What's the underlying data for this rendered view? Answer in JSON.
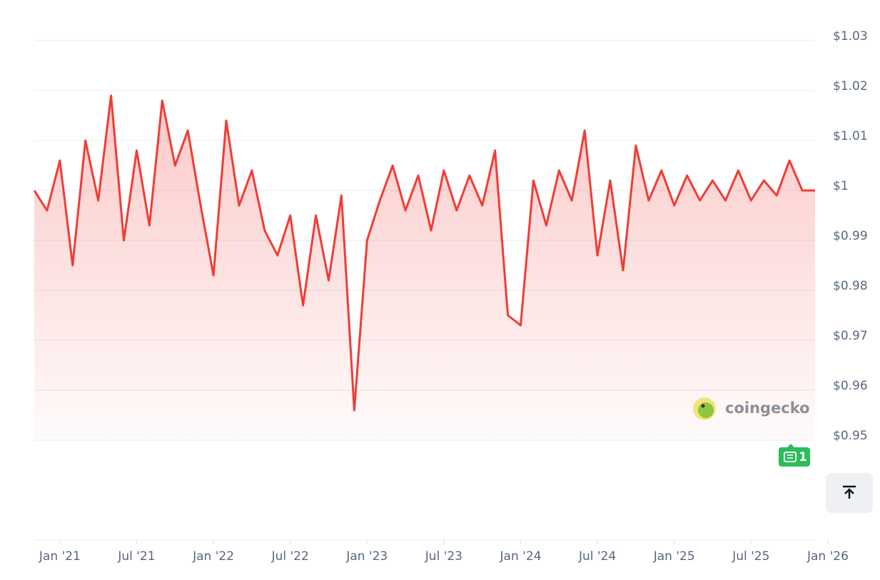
{
  "chart_data": {
    "type": "line",
    "x": [
      "2020-11",
      "2020-12",
      "2021-01",
      "2021-02",
      "2021-03",
      "2021-04",
      "2021-05",
      "2021-06",
      "2021-07",
      "2021-08",
      "2021-09",
      "2021-10",
      "2021-11",
      "2021-12",
      "2022-01",
      "2022-02",
      "2022-03",
      "2022-04",
      "2022-05",
      "2022-06",
      "2022-07",
      "2022-08",
      "2022-09",
      "2022-10",
      "2022-11",
      "2022-12",
      "2023-01",
      "2023-02",
      "2023-03",
      "2023-04",
      "2023-05",
      "2023-06",
      "2023-07",
      "2023-08",
      "2023-09",
      "2023-10",
      "2023-11",
      "2023-12",
      "2024-01",
      "2024-02",
      "2024-03",
      "2024-04",
      "2024-05",
      "2024-06",
      "2024-07",
      "2024-08",
      "2024-09",
      "2024-10",
      "2024-11",
      "2024-12",
      "2025-01",
      "2025-02",
      "2025-03",
      "2025-04",
      "2025-05",
      "2025-06",
      "2025-07",
      "2025-08",
      "2025-09",
      "2025-10",
      "2025-11",
      "2025-12"
    ],
    "values": [
      1.0,
      0.996,
      1.006,
      0.985,
      1.01,
      0.998,
      1.019,
      0.99,
      1.008,
      0.993,
      1.018,
      1.005,
      1.012,
      0.997,
      0.983,
      1.014,
      0.997,
      1.004,
      0.992,
      0.987,
      0.995,
      0.977,
      0.995,
      0.982,
      0.999,
      0.956,
      0.99,
      0.998,
      1.005,
      0.996,
      1.003,
      0.992,
      1.004,
      0.996,
      1.003,
      0.997,
      1.008,
      0.975,
      0.973,
      1.002,
      0.993,
      1.004,
      0.998,
      1.012,
      0.987,
      1.002,
      0.984,
      1.009,
      0.998,
      1.004,
      0.997,
      1.003,
      0.998,
      1.002,
      0.998,
      1.004,
      0.998,
      1.002,
      0.999,
      1.006,
      1.0,
      1.0
    ],
    "color": "#f03c36",
    "xlim": [
      "2020-11",
      "2025-12"
    ],
    "xticks": [
      {
        "value": "2021-01",
        "label": "Jan '21"
      },
      {
        "value": "2021-07",
        "label": "Jul '21"
      },
      {
        "value": "2022-01",
        "label": "Jan '22"
      },
      {
        "value": "2022-07",
        "label": "Jul '22"
      },
      {
        "value": "2023-01",
        "label": "Jan '23"
      },
      {
        "value": "2023-07",
        "label": "Jul '23"
      },
      {
        "value": "2024-01",
        "label": "Jan '24"
      },
      {
        "value": "2024-07",
        "label": "Jul '24"
      },
      {
        "value": "2025-01",
        "label": "Jan '25"
      },
      {
        "value": "2025-07",
        "label": "Jul '25"
      },
      {
        "value": "2026-01",
        "label": "Jan '26"
      }
    ],
    "ylim": [
      0.95,
      1.03
    ],
    "yticks": [
      {
        "value": 0.95,
        "label": "$0.95"
      },
      {
        "value": 0.96,
        "label": "$0.96"
      },
      {
        "value": 0.97,
        "label": "$0.97"
      },
      {
        "value": 0.98,
        "label": "$0.98"
      },
      {
        "value": 0.99,
        "label": "$0.99"
      },
      {
        "value": 1,
        "label": "$1"
      },
      {
        "value": 1.01,
        "label": "$1.01"
      },
      {
        "value": 1.02,
        "label": "$1.02"
      },
      {
        "value": 1.03,
        "label": "$1.03"
      }
    ],
    "grid": true
  },
  "watermark": "coingecko",
  "news_count": 1
}
